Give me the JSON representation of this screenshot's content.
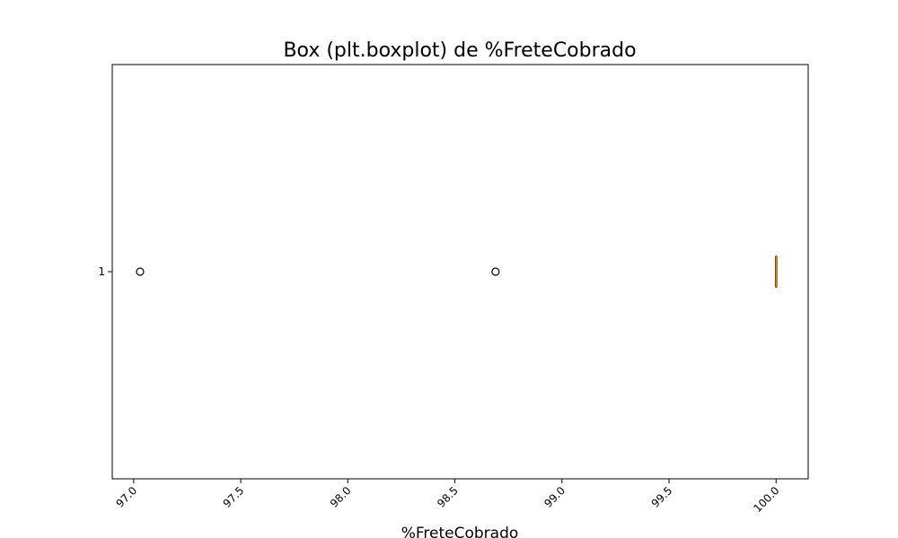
{
  "chart_data": {
    "type": "boxplot",
    "orientation": "horizontal",
    "title": "Box (plt.boxplot) de %FreteCobrado",
    "xlabel": "%FreteCobrado",
    "ylabel": "",
    "xlim": [
      96.9,
      100.15
    ],
    "grid": false,
    "x_ticks": [
      97.0,
      97.5,
      98.0,
      98.5,
      99.0,
      99.5,
      100.0
    ],
    "x_tick_labels": [
      "97.0",
      "97.5",
      "98.0",
      "98.5",
      "99.0",
      "99.5",
      "100.0"
    ],
    "y_tick_labels": [
      "1"
    ],
    "boxes": [
      {
        "label": "1",
        "whisker_low": 100.0,
        "q1": 100.0,
        "median": 100.0,
        "q3": 100.0,
        "whisker_high": 100.0,
        "outliers": [
          97.03,
          98.69
        ]
      }
    ],
    "colors": {
      "box": "#000000",
      "median": "#ff7f0e",
      "outlier_edge": "#000000"
    }
  }
}
